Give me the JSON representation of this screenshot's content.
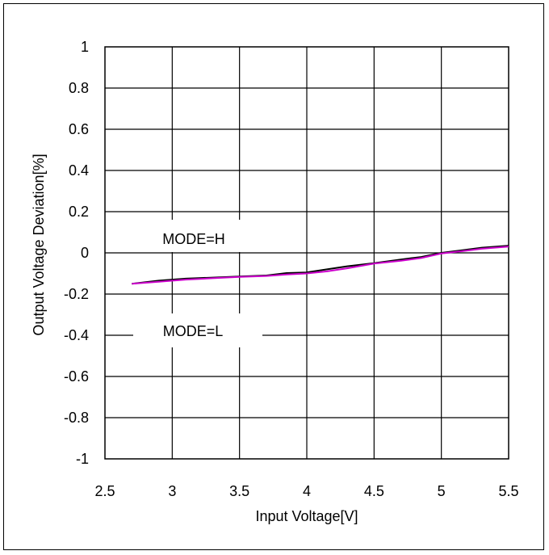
{
  "chart_data": {
    "type": "line",
    "title": "",
    "xlabel": "Input Voltage[V]",
    "ylabel": "Output Voltage Deviation[%]",
    "xlim": [
      2.5,
      5.5
    ],
    "ylim": [
      -1,
      1
    ],
    "x_ticks": [
      "2.5",
      "3",
      "3.5",
      "4",
      "4.5",
      "5",
      "5.5"
    ],
    "y_ticks": [
      "1",
      "0.8",
      "0.6",
      "0.4",
      "0.2",
      "0",
      "-0.2",
      "-0.4",
      "-0.6",
      "-0.8",
      "-1"
    ],
    "grid": true,
    "series": [
      {
        "name": "MODE=H",
        "color": "#000000",
        "x": [
          2.7,
          2.9,
          3.1,
          3.3,
          3.5,
          3.7,
          3.85,
          4.0,
          4.15,
          4.3,
          4.5,
          4.7,
          4.85,
          5.0,
          5.15,
          5.3,
          5.5
        ],
        "y": [
          -0.15,
          -0.135,
          -0.125,
          -0.12,
          -0.115,
          -0.11,
          -0.098,
          -0.095,
          -0.08,
          -0.065,
          -0.05,
          -0.032,
          -0.02,
          0.0,
          0.012,
          0.025,
          0.035
        ]
      },
      {
        "name": "MODE=L",
        "color": "#cc00cc",
        "x": [
          2.7,
          2.9,
          3.1,
          3.3,
          3.5,
          3.7,
          3.85,
          4.0,
          4.15,
          4.3,
          4.5,
          4.7,
          4.85,
          5.0,
          5.15,
          5.3,
          5.5
        ],
        "y": [
          -0.15,
          -0.14,
          -0.13,
          -0.123,
          -0.117,
          -0.112,
          -0.105,
          -0.1,
          -0.09,
          -0.075,
          -0.052,
          -0.038,
          -0.025,
          -0.003,
          0.008,
          0.02,
          0.03
        ]
      }
    ],
    "annotations": [
      "MODE=H",
      "MODE=L"
    ]
  }
}
